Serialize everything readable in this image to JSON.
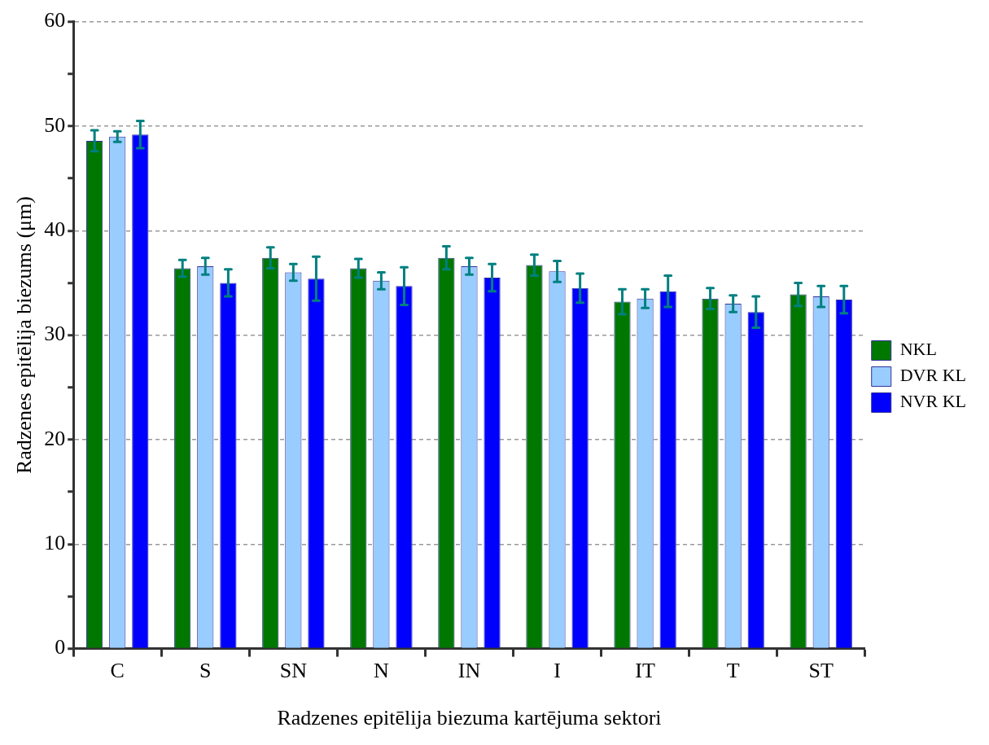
{
  "chart_data": {
    "type": "bar",
    "xlabel": "Radzenes epitēlija biezuma kartējuma sektori",
    "ylabel": "Radzenes epitēlija biezums (μm)",
    "categories": [
      "C",
      "S",
      "SN",
      "N",
      "IN",
      "I",
      "IT",
      "T",
      "ST"
    ],
    "series": [
      {
        "name": "NKL",
        "color": "#007800",
        "values": [
          48.6,
          36.4,
          37.4,
          36.4,
          37.4,
          36.7,
          33.2,
          33.5,
          33.9
        ],
        "errors": [
          1.0,
          0.8,
          1.0,
          0.9,
          1.1,
          1.0,
          1.2,
          1.0,
          1.1
        ]
      },
      {
        "name": "DVR KL",
        "color": "#99ccff",
        "values": [
          49.0,
          36.6,
          36.0,
          35.2,
          36.6,
          36.1,
          33.5,
          33.0,
          33.7
        ],
        "errors": [
          0.5,
          0.8,
          0.8,
          0.8,
          0.8,
          1.0,
          0.9,
          0.8,
          1.0
        ]
      },
      {
        "name": "NVR KL",
        "color": "#0000ff",
        "values": [
          49.2,
          35.0,
          35.4,
          34.7,
          35.5,
          34.5,
          34.2,
          32.2,
          33.4
        ],
        "errors": [
          1.3,
          1.3,
          2.1,
          1.8,
          1.3,
          1.4,
          1.5,
          1.5,
          1.3
        ]
      }
    ],
    "ylim": [
      0,
      60
    ],
    "yticks": [
      0,
      {
        "value": 5,
        "label": null
      },
      10,
      {
        "value": 15,
        "label": null
      },
      20,
      {
        "value": 25,
        "label": null
      },
      30,
      {
        "value": 35,
        "label": null
      },
      40,
      {
        "value": 45,
        "label": null
      },
      50,
      {
        "value": 55,
        "label": null
      },
      60
    ],
    "grid": "y",
    "legend": "right"
  }
}
